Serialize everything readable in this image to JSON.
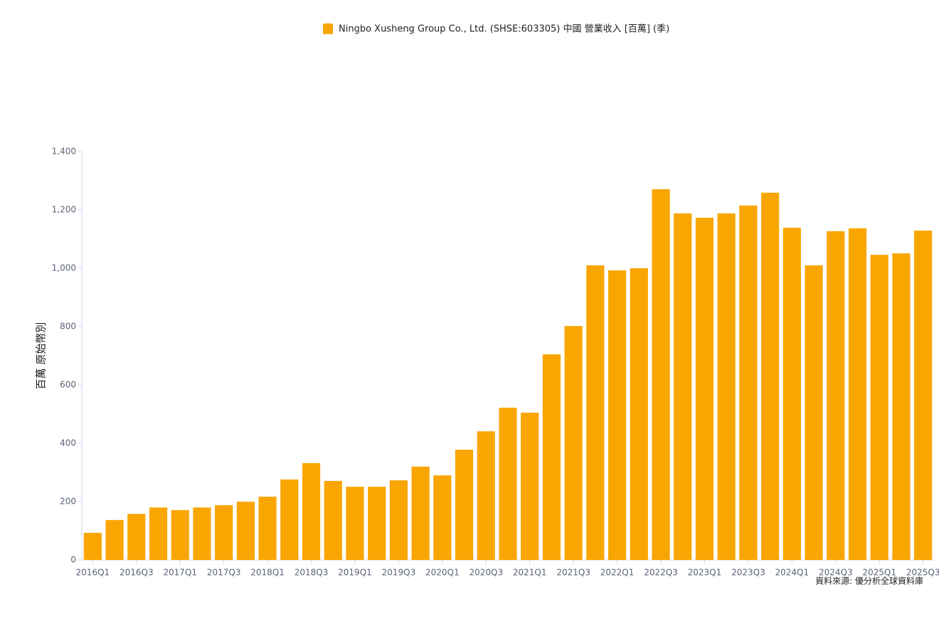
{
  "chart_data": {
    "type": "bar",
    "legend": "Ningbo Xusheng Group Co., Ltd. (SHSE:603305) 中國 營業收入 [百萬] (季)",
    "y_label": "百萬 原始幣別",
    "source": "資料來源: 優分析全球資料庫",
    "color": "#f9a602",
    "categories": [
      "2016Q1",
      null,
      "2016Q3",
      null,
      "2017Q1",
      null,
      "2017Q3",
      null,
      "2018Q1",
      null,
      "2018Q3",
      null,
      "2019Q1",
      null,
      "2019Q3",
      null,
      "2020Q1",
      null,
      "2020Q3",
      null,
      "2021Q1",
      null,
      "2021Q3",
      null,
      "2022Q1",
      null,
      "2022Q3",
      null,
      "2023Q1",
      null,
      "2023Q3",
      null,
      "2024Q1",
      null,
      "2024Q3",
      null,
      "2025Q1",
      null,
      "2025Q3"
    ],
    "values": [
      93,
      137,
      158,
      180,
      171,
      180,
      188,
      200,
      217,
      276,
      332,
      271,
      251,
      251,
      273,
      320,
      290,
      378,
      441,
      522,
      505,
      705,
      802,
      1010,
      993,
      1000,
      1271,
      1188,
      1173,
      1188,
      1215,
      1259,
      1139,
      1010,
      1127,
      1137,
      1046,
      1051,
      1129
    ],
    "ylim": [
      0,
      1400
    ],
    "yticks": [
      0,
      200,
      400,
      600,
      800,
      {
        "value": 1000,
        "label": "1,000"
      },
      {
        "value": 1200,
        "label": "1,200"
      },
      {
        "value": 1400,
        "label": "1,400"
      }
    ]
  }
}
